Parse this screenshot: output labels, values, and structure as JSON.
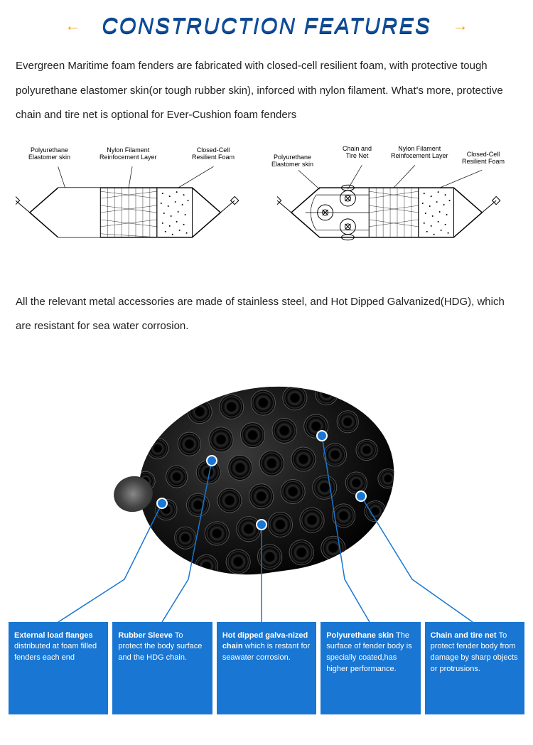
{
  "header": {
    "title": "CONSTRUCTION FEATURES",
    "arrow_left": "←",
    "arrow_right": "→"
  },
  "paragraphs": {
    "p1": "Evergreen Maritime foam fenders are fabricated with closed-cell resilient foam, with protective tough polyurethane elastomer skin(or tough rubber skin), inforced with nylon filament. What's more, protective chain and tire net is optional for Ever-Cushion foam fenders",
    "p2": "All the relevant metal accessories are made of stainless steel, and Hot Dipped Galvanized(HDG), which are resistant for sea water corrosion."
  },
  "diagram1_labels": {
    "l1": "Polyurethane\nElastomer skin",
    "l2": "Nylon Filament\nReinfocement Layer",
    "l3": "Closed-Cell\nResilient Foam"
  },
  "diagram2_labels": {
    "l1": "Polyurethane\nElastomer skin",
    "l2": "Chain and\nTire Net",
    "l3": "Nylon Filament\nReinfocement Layer",
    "l4": "Closed-Cell\nResilient Foam"
  },
  "callouts": {
    "c1_title": "External load  flanges ",
    "c1_text": "distributed at foam filled fenders each end",
    "c2_title": "Rubber Sleeve ",
    "c2_text": "To protect the body surface and the HDG chain.",
    "c3_title": "Hot dipped galva-nized chain ",
    "c3_text": "which is restant for seawater corrosion.",
    "c4_title": "Polyurethane skin ",
    "c4_text": "The surface of fender body is specially coated,has higher performance.",
    "c5_title": "Chain and tire net ",
    "c5_text": "To protect fender body from damage by sharp objects or protrusions."
  },
  "colors": {
    "title_color": "#0d4f9e",
    "arrow_color": "#f39c12",
    "callout_blue": "#1976d2",
    "text_color": "#222222",
    "fender_dark": "#000000"
  }
}
